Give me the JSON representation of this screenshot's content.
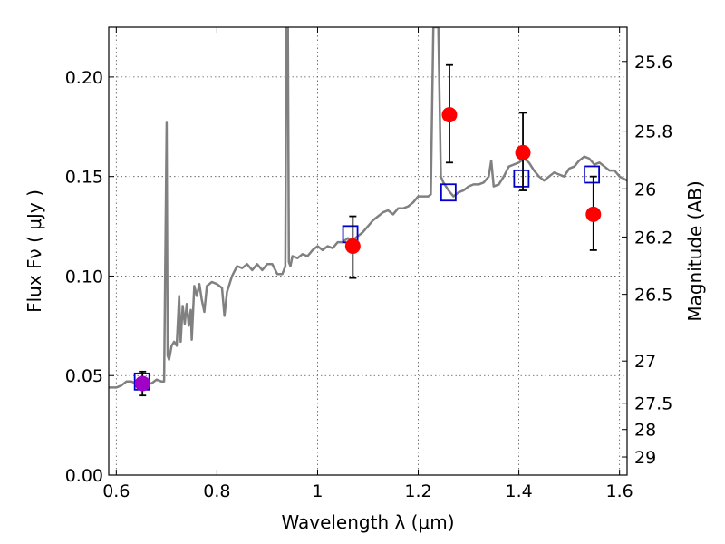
{
  "chart_data": {
    "type": "scatter",
    "title": "",
    "xlabel": "Wavelength  λ (μm)",
    "ylabel": "Flux  Fν  ( μJy )",
    "ylabel_right": "Magnitude (AB)",
    "xlim": [
      0.585,
      1.615
    ],
    "ylim": [
      0.0,
      0.225
    ],
    "grid": true,
    "x_ticks": [
      {
        "value": 0.6,
        "label": "0.6"
      },
      {
        "value": 0.8,
        "label": "0.8"
      },
      {
        "value": 1.0,
        "label": "1"
      },
      {
        "value": 1.2,
        "label": "1.2"
      },
      {
        "value": 1.4,
        "label": "1.4"
      },
      {
        "value": 1.6,
        "label": "1.6"
      }
    ],
    "y_ticks": [
      {
        "value": 0.0,
        "label": "0.00"
      },
      {
        "value": 0.05,
        "label": "0.05"
      },
      {
        "value": 0.1,
        "label": "0.10"
      },
      {
        "value": 0.15,
        "label": "0.15"
      },
      {
        "value": 0.2,
        "label": "0.20"
      }
    ],
    "mag_ticks": [
      {
        "value": 0.2078,
        "label": "25.6"
      },
      {
        "value": 0.1728,
        "label": "25.8"
      },
      {
        "value": 0.1438,
        "label": "26"
      },
      {
        "value": 0.1196,
        "label": "26.2"
      },
      {
        "value": 0.0908,
        "label": "26.5"
      },
      {
        "value": 0.0573,
        "label": "27"
      },
      {
        "value": 0.0361,
        "label": "27.5"
      },
      {
        "value": 0.0229,
        "label": "28"
      },
      {
        "value": 0.0091,
        "label": "29"
      }
    ],
    "series": [
      {
        "type": "line",
        "color": "#808080",
        "points": [
          [
            0.585,
            0.044
          ],
          [
            0.6,
            0.044
          ],
          [
            0.61,
            0.045
          ],
          [
            0.62,
            0.047
          ],
          [
            0.63,
            0.047
          ],
          [
            0.64,
            0.046
          ],
          [
            0.65,
            0.048
          ],
          [
            0.66,
            0.047
          ],
          [
            0.67,
            0.046
          ],
          [
            0.68,
            0.048
          ],
          [
            0.69,
            0.047
          ],
          [
            0.695,
            0.047
          ],
          [
            0.7,
            0.177
          ],
          [
            0.702,
            0.06
          ],
          [
            0.705,
            0.058
          ],
          [
            0.71,
            0.065
          ],
          [
            0.715,
            0.067
          ],
          [
            0.72,
            0.065
          ],
          [
            0.725,
            0.09
          ],
          [
            0.728,
            0.067
          ],
          [
            0.732,
            0.085
          ],
          [
            0.736,
            0.076
          ],
          [
            0.74,
            0.086
          ],
          [
            0.744,
            0.075
          ],
          [
            0.748,
            0.083
          ],
          [
            0.75,
            0.068
          ],
          [
            0.755,
            0.095
          ],
          [
            0.76,
            0.09
          ],
          [
            0.765,
            0.096
          ],
          [
            0.77,
            0.088
          ],
          [
            0.775,
            0.082
          ],
          [
            0.78,
            0.095
          ],
          [
            0.79,
            0.097
          ],
          [
            0.8,
            0.096
          ],
          [
            0.81,
            0.094
          ],
          [
            0.815,
            0.08
          ],
          [
            0.82,
            0.092
          ],
          [
            0.83,
            0.1
          ],
          [
            0.84,
            0.105
          ],
          [
            0.85,
            0.104
          ],
          [
            0.86,
            0.106
          ],
          [
            0.87,
            0.103
          ],
          [
            0.88,
            0.106
          ],
          [
            0.89,
            0.103
          ],
          [
            0.9,
            0.106
          ],
          [
            0.91,
            0.106
          ],
          [
            0.92,
            0.101
          ],
          [
            0.93,
            0.101
          ],
          [
            0.936,
            0.105
          ],
          [
            0.938,
            0.225
          ],
          [
            0.941,
            0.225
          ],
          [
            0.943,
            0.107
          ],
          [
            0.946,
            0.105
          ],
          [
            0.95,
            0.11
          ],
          [
            0.96,
            0.109
          ],
          [
            0.97,
            0.111
          ],
          [
            0.98,
            0.11
          ],
          [
            0.99,
            0.113
          ],
          [
            1.0,
            0.115
          ],
          [
            1.01,
            0.113
          ],
          [
            1.02,
            0.115
          ],
          [
            1.03,
            0.114
          ],
          [
            1.04,
            0.117
          ],
          [
            1.05,
            0.117
          ],
          [
            1.06,
            0.119
          ],
          [
            1.07,
            0.118
          ],
          [
            1.08,
            0.12
          ],
          [
            1.09,
            0.122
          ],
          [
            1.1,
            0.125
          ],
          [
            1.11,
            0.128
          ],
          [
            1.12,
            0.13
          ],
          [
            1.13,
            0.132
          ],
          [
            1.14,
            0.133
          ],
          [
            1.15,
            0.131
          ],
          [
            1.16,
            0.134
          ],
          [
            1.17,
            0.134
          ],
          [
            1.18,
            0.135
          ],
          [
            1.19,
            0.137
          ],
          [
            1.2,
            0.14
          ],
          [
            1.21,
            0.14
          ],
          [
            1.22,
            0.14
          ],
          [
            1.225,
            0.141
          ],
          [
            1.23,
            0.225
          ],
          [
            1.24,
            0.225
          ],
          [
            1.245,
            0.15
          ],
          [
            1.25,
            0.147
          ],
          [
            1.255,
            0.145
          ],
          [
            1.26,
            0.143
          ],
          [
            1.27,
            0.14
          ],
          [
            1.28,
            0.142
          ],
          [
            1.29,
            0.143
          ],
          [
            1.3,
            0.145
          ],
          [
            1.31,
            0.146
          ],
          [
            1.32,
            0.146
          ],
          [
            1.33,
            0.147
          ],
          [
            1.34,
            0.15
          ],
          [
            1.345,
            0.158
          ],
          [
            1.35,
            0.145
          ],
          [
            1.36,
            0.146
          ],
          [
            1.37,
            0.15
          ],
          [
            1.38,
            0.155
          ],
          [
            1.39,
            0.156
          ],
          [
            1.4,
            0.157
          ],
          [
            1.41,
            0.159
          ],
          [
            1.42,
            0.157
          ],
          [
            1.43,
            0.153
          ],
          [
            1.44,
            0.15
          ],
          [
            1.45,
            0.148
          ],
          [
            1.46,
            0.15
          ],
          [
            1.47,
            0.152
          ],
          [
            1.48,
            0.151
          ],
          [
            1.49,
            0.15
          ],
          [
            1.5,
            0.154
          ],
          [
            1.51,
            0.155
          ],
          [
            1.52,
            0.158
          ],
          [
            1.53,
            0.16
          ],
          [
            1.54,
            0.159
          ],
          [
            1.55,
            0.156
          ],
          [
            1.56,
            0.157
          ],
          [
            1.57,
            0.155
          ],
          [
            1.58,
            0.153
          ],
          [
            1.59,
            0.153
          ],
          [
            1.6,
            0.15
          ],
          [
            1.615,
            0.148
          ]
        ]
      },
      {
        "type": "squares",
        "color": "#0000cc",
        "points": [
          [
            0.651,
            0.047
          ],
          [
            1.065,
            0.121
          ],
          [
            1.26,
            0.142
          ],
          [
            1.405,
            0.149
          ],
          [
            1.545,
            0.151
          ]
        ]
      },
      {
        "type": "circles",
        "color": "#ff0000",
        "points": [
          {
            "x": 1.07,
            "y": 0.115,
            "err_low": 0.099,
            "err_high": 0.13
          },
          {
            "x": 1.262,
            "y": 0.181,
            "err_low": 0.157,
            "err_high": 0.206
          },
          {
            "x": 1.408,
            "y": 0.162,
            "err_low": 0.143,
            "err_high": 0.182
          },
          {
            "x": 1.548,
            "y": 0.131,
            "err_low": 0.113,
            "err_high": 0.15
          }
        ]
      },
      {
        "type": "circles",
        "color": "#a000c8",
        "points": [
          {
            "x": 0.652,
            "y": 0.046,
            "err_low": 0.04,
            "err_high": 0.052
          }
        ]
      }
    ]
  }
}
